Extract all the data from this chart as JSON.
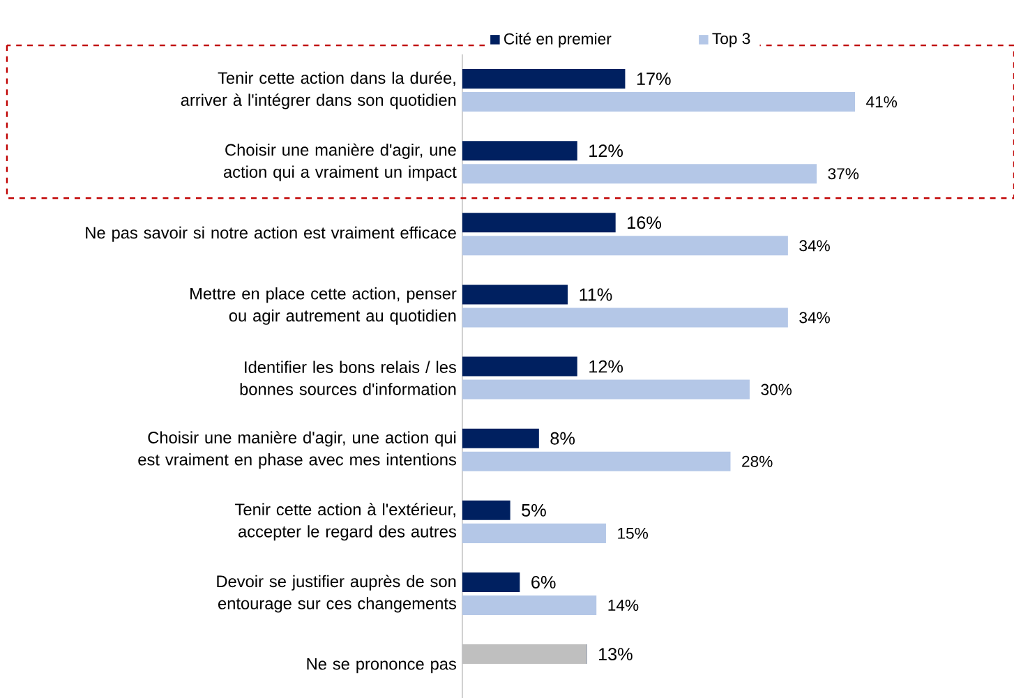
{
  "chart_data": {
    "type": "bar",
    "orientation": "horizontal",
    "categories": [
      "Tenir cette action dans la durée, arriver à l'intégrer dans son quotidien",
      "Choisir une manière d'agir, une action qui a vraiment un impact",
      "Ne pas savoir si notre action est vraiment efficace",
      "Mettre en place cette action, penser ou agir autrement au quotidien",
      "Identifier les bons relais / les bonnes sources d'information",
      "Choisir une manière d'agir, une action qui est vraiment en phase avec mes intentions",
      "Tenir cette action à l'extérieur, accepter le regard des autres",
      "Devoir se justifier auprès de son entourage sur ces changements",
      "Ne se prononce pas"
    ],
    "series": [
      {
        "name": "Cité en premier",
        "color": "#002060",
        "colors": [
          "#002060",
          "#002060",
          "#002060",
          "#002060",
          "#002060",
          "#002060",
          "#002060",
          "#002060",
          "#bfbfbf"
        ],
        "values": [
          17,
          12,
          16,
          11,
          12,
          8,
          5,
          6,
          13
        ],
        "value_labels": [
          "17%",
          "12%",
          "16%",
          "11%",
          "12%",
          "8%",
          "5%",
          "6%",
          "13%"
        ]
      },
      {
        "name": "Top 3",
        "color": "#b4c7e7",
        "values": [
          41,
          37,
          34,
          34,
          30,
          28,
          15,
          14,
          null
        ],
        "value_labels": [
          "41%",
          "37%",
          "34%",
          "34%",
          "30%",
          "28%",
          "15%",
          "14%",
          null
        ]
      }
    ],
    "legend": "top"
  }
}
